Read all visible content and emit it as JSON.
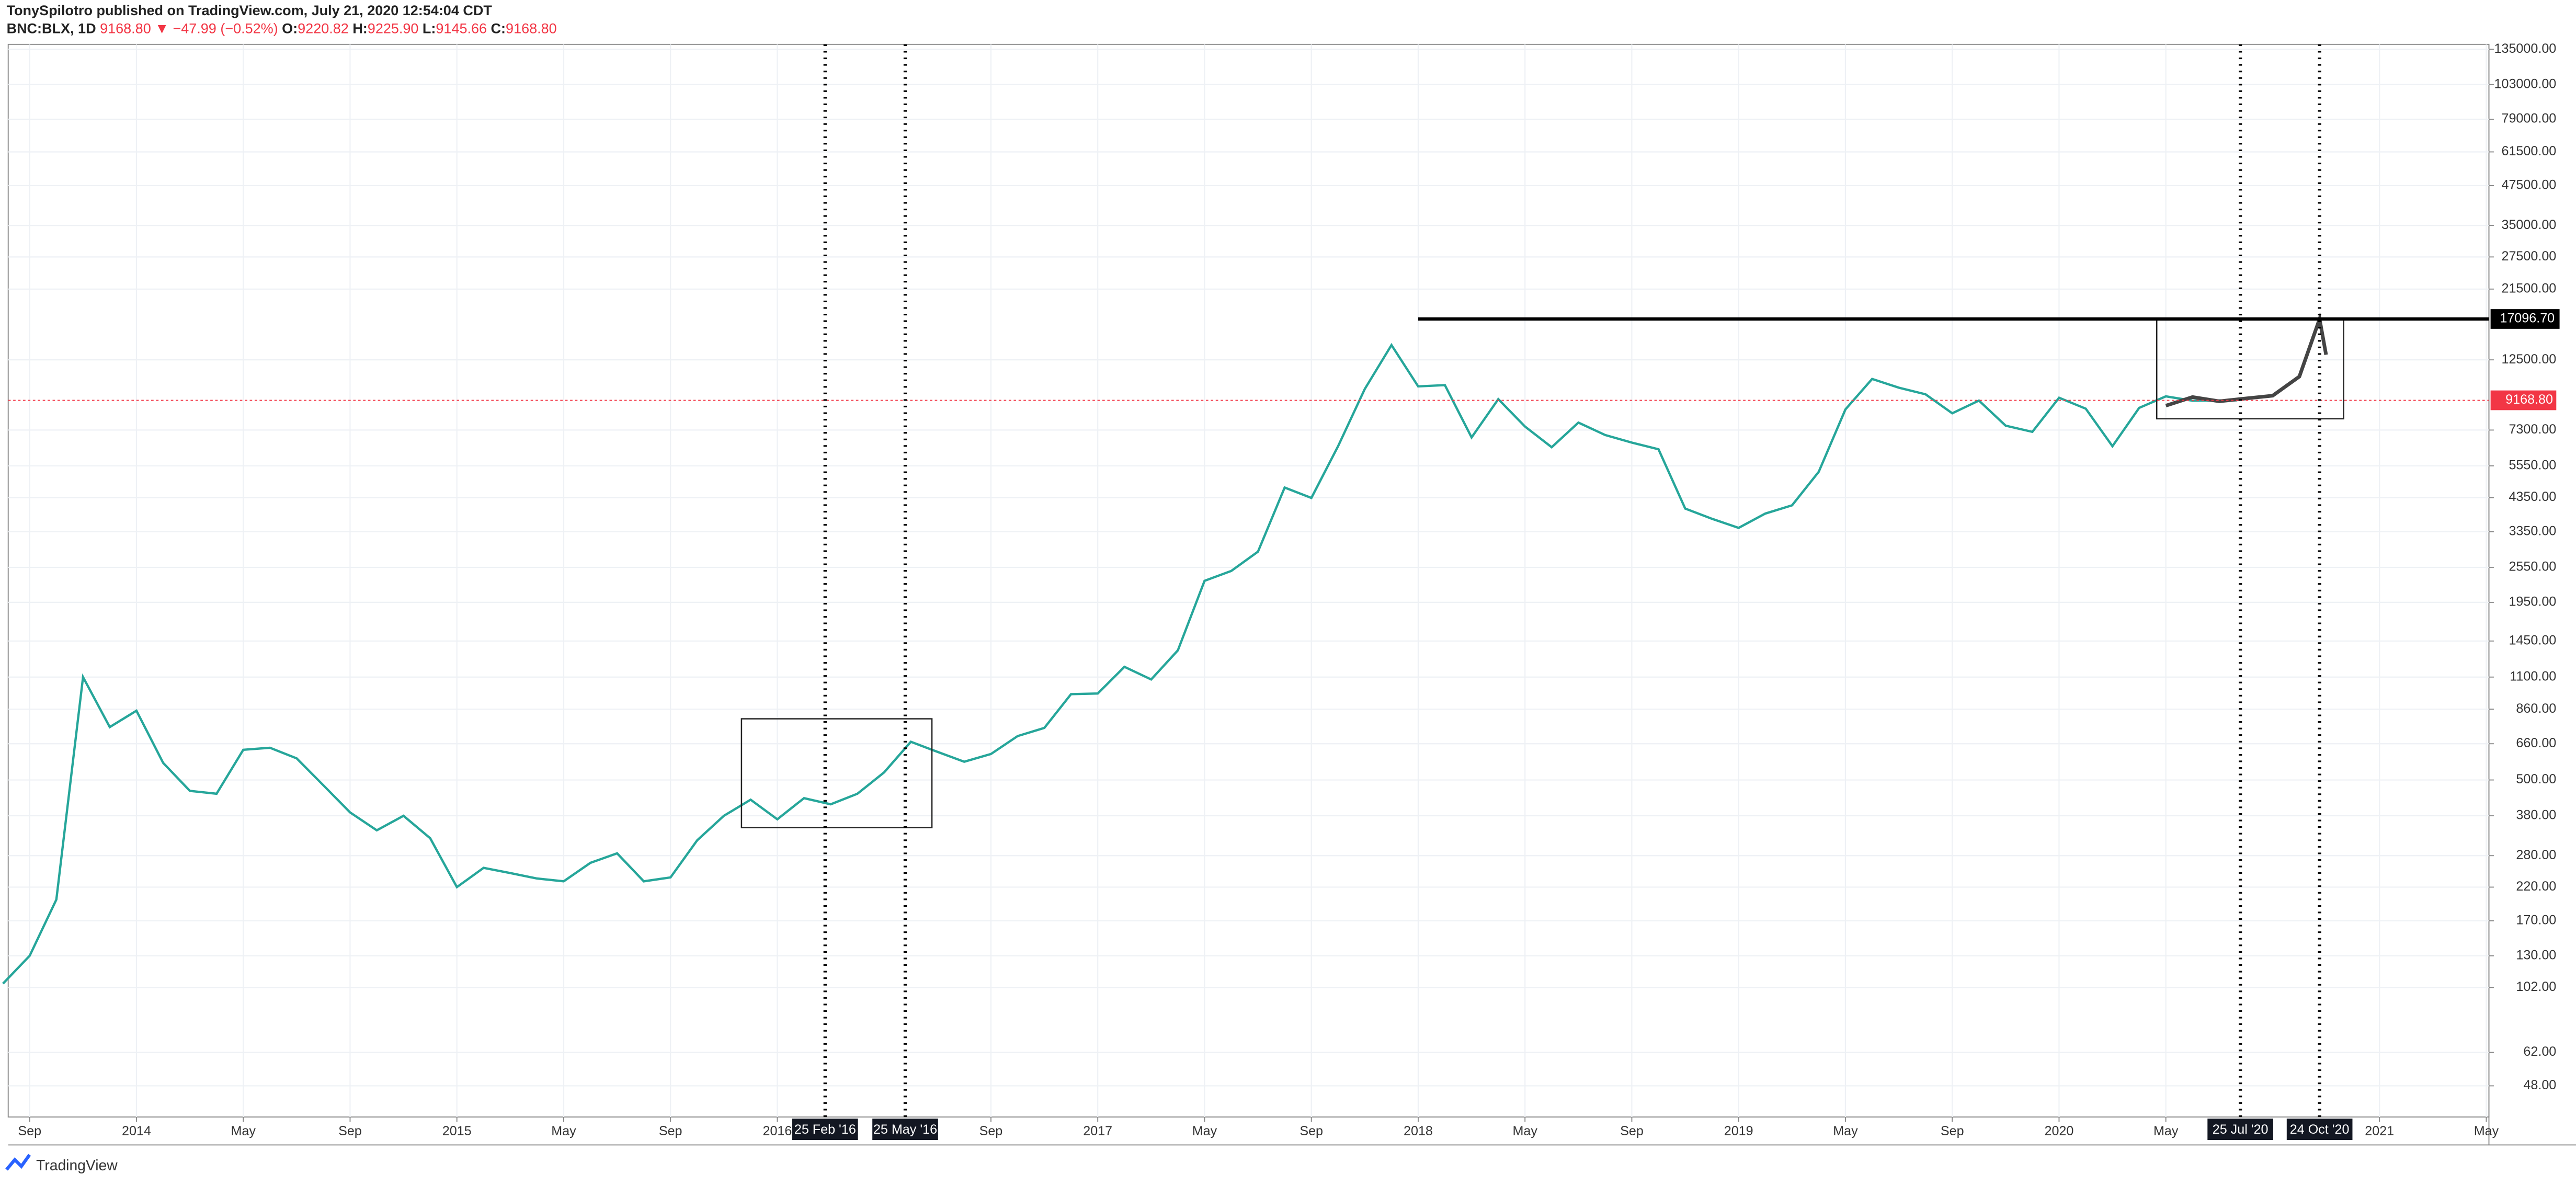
{
  "header": {
    "author_line": "TonySpilotro published on TradingView.com, July 21, 2020 12:54:04 CDT",
    "symbol": "BNC:BLX, 1D",
    "last": "9168.80",
    "arrow": "▼",
    "change": "−47.99 (−0.52%)",
    "ohlc": [
      {
        "label": "O:",
        "value": "9220.82"
      },
      {
        "label": "H:",
        "value": "9225.90"
      },
      {
        "label": "L:",
        "value": "9145.66"
      },
      {
        "label": "C:",
        "value": "9168.80"
      }
    ]
  },
  "footer": {
    "brand": "TradingView"
  },
  "chart_data": {
    "type": "line",
    "color": "#26a69a",
    "log_scale": true,
    "grid": true,
    "x": [
      "2013-08",
      "2013-09",
      "2013-10",
      "2013-11",
      "2013-12",
      "2014-01",
      "2014-02",
      "2014-03",
      "2014-04",
      "2014-05",
      "2014-06",
      "2014-07",
      "2014-08",
      "2014-09",
      "2014-10",
      "2014-11",
      "2014-12",
      "2015-01",
      "2015-02",
      "2015-03",
      "2015-04",
      "2015-05",
      "2015-06",
      "2015-07",
      "2015-08",
      "2015-09",
      "2015-10",
      "2015-11",
      "2015-12",
      "2016-01",
      "2016-02",
      "2016-03",
      "2016-04",
      "2016-05",
      "2016-06",
      "2016-07",
      "2016-08",
      "2016-09",
      "2016-10",
      "2016-11",
      "2016-12",
      "2017-01",
      "2017-02",
      "2017-03",
      "2017-04",
      "2017-05",
      "2017-06",
      "2017-07",
      "2017-08",
      "2017-09",
      "2017-10",
      "2017-11",
      "2017-12",
      "2018-01",
      "2018-02",
      "2018-03",
      "2018-04",
      "2018-05",
      "2018-06",
      "2018-07",
      "2018-08",
      "2018-09",
      "2018-10",
      "2018-11",
      "2018-12",
      "2019-01",
      "2019-02",
      "2019-03",
      "2019-04",
      "2019-05",
      "2019-06",
      "2019-07",
      "2019-08",
      "2019-09",
      "2019-10",
      "2019-11",
      "2019-12",
      "2020-01",
      "2020-02",
      "2020-03",
      "2020-04",
      "2020-05",
      "2020-06",
      "2020-07-21"
    ],
    "values": [
      105,
      130,
      200,
      1100,
      750,
      850,
      570,
      460,
      450,
      630,
      640,
      590,
      480,
      390,
      340,
      380,
      320,
      220,
      255,
      245,
      235,
      230,
      265,
      285,
      230,
      237,
      315,
      380,
      430,
      370,
      435,
      415,
      450,
      530,
      670,
      620,
      575,
      610,
      700,
      745,
      965,
      970,
      1190,
      1080,
      1350,
      2300,
      2480,
      2875,
      4700,
      4340,
      6450,
      10000,
      14000,
      10200,
      10300,
      6900,
      9250,
      7500,
      6400,
      7730,
      7030,
      6630,
      6300,
      4000,
      3700,
      3450,
      3850,
      4100,
      5300,
      8550,
      10800,
      10100,
      9600,
      8300,
      9150,
      7550,
      7200,
      9350,
      8600,
      6450,
      8650,
      9450,
      9140,
      9168.8
    ],
    "projection": {
      "color": "#444444",
      "x": [
        "2020-05-01",
        "2020-06-01",
        "2020-07-01",
        "2020-08-01",
        "2020-09-01",
        "2020-10-01",
        "2020-10-24",
        "2020-11-01"
      ],
      "values": [
        8800,
        9400,
        9100,
        9300,
        9500,
        11000,
        17096.7,
        13000
      ]
    },
    "xlim": [
      "2013-08-07",
      "2021-05-04"
    ],
    "xticks": [
      {
        "value": "2013-09",
        "label": "Sep"
      },
      {
        "value": "2014-01",
        "label": "2014"
      },
      {
        "value": "2014-05",
        "label": "May"
      },
      {
        "value": "2014-09",
        "label": "Sep"
      },
      {
        "value": "2015-01",
        "label": "2015"
      },
      {
        "value": "2015-05",
        "label": "May"
      },
      {
        "value": "2015-09",
        "label": "Sep"
      },
      {
        "value": "2016-01",
        "label": "2016"
      },
      {
        "value": "2016-09",
        "label": "Sep"
      },
      {
        "value": "2017-01",
        "label": "2017"
      },
      {
        "value": "2017-05",
        "label": "May"
      },
      {
        "value": "2017-09",
        "label": "Sep"
      },
      {
        "value": "2018-01",
        "label": "2018"
      },
      {
        "value": "2018-05",
        "label": "May"
      },
      {
        "value": "2018-09",
        "label": "Sep"
      },
      {
        "value": "2019-01",
        "label": "2019"
      },
      {
        "value": "2019-05",
        "label": "May"
      },
      {
        "value": "2019-09",
        "label": "Sep"
      },
      {
        "value": "2020-01",
        "label": "2020"
      },
      {
        "value": "2020-05",
        "label": "May"
      },
      {
        "value": "2021-01",
        "label": "2021"
      },
      {
        "value": "2021-05",
        "label": "May"
      }
    ],
    "ylim": [
      37.8,
      140200
    ],
    "yticks": [
      {
        "value": 135000,
        "label": "135000.00"
      },
      {
        "value": 103000,
        "label": "103000.00"
      },
      {
        "value": 79000,
        "label": "79000.00"
      },
      {
        "value": 61500,
        "label": "61500.00"
      },
      {
        "value": 47500,
        "label": "47500.00"
      },
      {
        "value": 35000,
        "label": "35000.00"
      },
      {
        "value": 27500,
        "label": "27500.00"
      },
      {
        "value": 21500,
        "label": "21500.00"
      },
      {
        "value": 12500,
        "label": "12500.00"
      },
      {
        "value": 7300,
        "label": "7300.00"
      },
      {
        "value": 5550,
        "label": "5550.00"
      },
      {
        "value": 4350,
        "label": "4350.00"
      },
      {
        "value": 3350,
        "label": "3350.00"
      },
      {
        "value": 2550,
        "label": "2550.00"
      },
      {
        "value": 1950,
        "label": "1950.00"
      },
      {
        "value": 1450,
        "label": "1450.00"
      },
      {
        "value": 1100,
        "label": "1100.00"
      },
      {
        "value": 860,
        "label": "860.00"
      },
      {
        "value": 660,
        "label": "660.00"
      },
      {
        "value": 500,
        "label": "500.00"
      },
      {
        "value": 380,
        "label": "380.00"
      },
      {
        "value": 280,
        "label": "280.00"
      },
      {
        "value": 220,
        "label": "220.00"
      },
      {
        "value": 170,
        "label": "170.00"
      },
      {
        "value": 130,
        "label": "130.00"
      },
      {
        "value": 102,
        "label": "102.00"
      },
      {
        "value": 62,
        "label": "62.00"
      },
      {
        "value": 48,
        "label": "48.00"
      }
    ],
    "last_price": {
      "value": 9168.8,
      "label": "9168.80",
      "color": "#f23645"
    },
    "level": {
      "value": 17096.7,
      "label": "17096.70",
      "from": "2018-01-01"
    },
    "markers": [
      {
        "x": "2016-02-25",
        "label": "25 Feb '16"
      },
      {
        "x": "2016-05-25",
        "label": "25 May '16"
      },
      {
        "x": "2020-07-25",
        "label": "25 Jul '20"
      },
      {
        "x": "2020-10-24",
        "label": "24 Oct '20"
      }
    ],
    "boxes": [
      {
        "x": [
          "2015-11-21",
          "2016-06-25"
        ],
        "y": [
          347,
          799
        ]
      },
      {
        "x": [
          "2020-04-21",
          "2020-11-21"
        ],
        "y": [
          7960,
          17096.7
        ]
      }
    ]
  }
}
